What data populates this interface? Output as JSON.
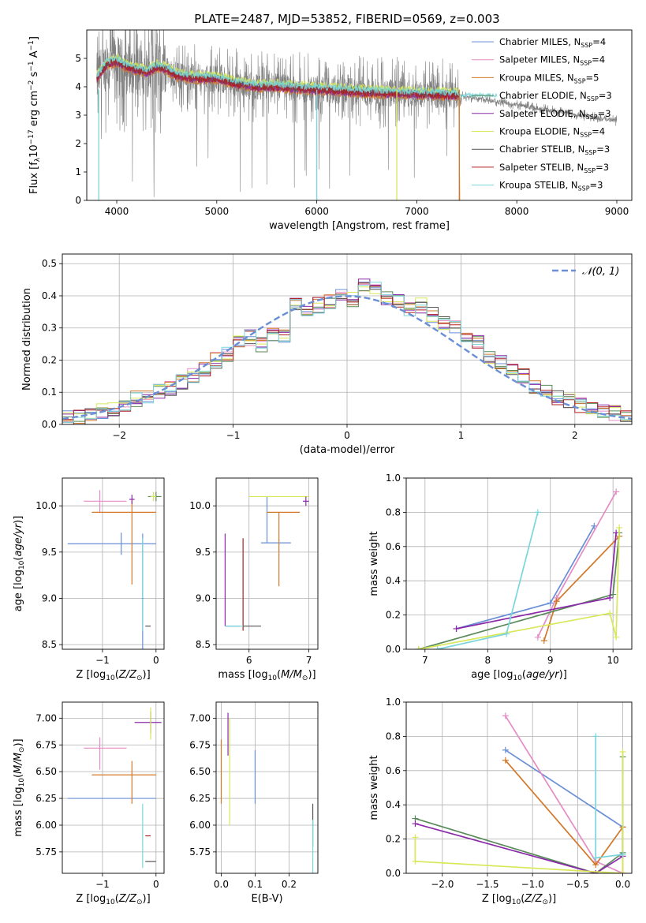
{
  "title": "PLATE=2487, MJD=53852, FIBERID=0569, z=0.003",
  "model_colors": [
    "#6a8fd6",
    "#e48cc4",
    "#d2782a",
    "#5a8a5a",
    "#8a2aa8",
    "#d8e85a",
    "#555555",
    "#b02020",
    "#7ad6dc"
  ],
  "legend": {
    "entries": [
      {
        "name": "Chabrier MILES",
        "nssp": "4"
      },
      {
        "name": "Salpeter MILES",
        "nssp": "4"
      },
      {
        "name": "Kroupa MILES",
        "nssp": "5"
      },
      {
        "name": "Chabrier ELODIE",
        "nssp": "3"
      },
      {
        "name": "Salpeter ELODIE",
        "nssp": "3"
      },
      {
        "name": "Kroupa ELODIE",
        "nssp": "4"
      },
      {
        "name": "Chabrier STELIB",
        "nssp": "3"
      },
      {
        "name": "Salpeter STELIB",
        "nssp": "3"
      },
      {
        "name": "Kroupa STELIB",
        "nssp": "3"
      }
    ]
  },
  "chart_data": [
    {
      "id": "spectrum",
      "type": "line",
      "xlabel": "wavelength [Angstrom, rest frame]",
      "ylabel": "Flux [f_λ 10^-17 erg cm^-2 s^-1 A^-1]",
      "xlim": [
        3700,
        9150
      ],
      "ylim": [
        0,
        6
      ],
      "xticks": [
        4000,
        5000,
        6000,
        7000,
        8000,
        9000
      ],
      "yticks": [
        0,
        1,
        2,
        3,
        4,
        5
      ],
      "data_range": [
        3800,
        9000
      ],
      "model_fits": [
        {
          "x": [
            3800,
            3900,
            4000,
            4100,
            4200,
            4300,
            4400,
            4500,
            4600,
            4800,
            5000,
            5200,
            5400,
            5600,
            5800,
            6000,
            6500,
            7000,
            7400
          ],
          "y": [
            4.3,
            4.8,
            4.9,
            4.7,
            4.6,
            4.5,
            4.7,
            4.6,
            4.4,
            4.3,
            4.3,
            4.1,
            4.0,
            4.0,
            3.95,
            3.9,
            3.8,
            3.75,
            3.7
          ]
        }
      ]
    },
    {
      "id": "residuals",
      "type": "step",
      "xlabel": "(data-model)/error",
      "ylabel": "Normed distribution",
      "xlim": [
        -2.5,
        2.5
      ],
      "ylim": [
        0,
        0.53
      ],
      "xticks": [
        -2,
        -1,
        0,
        1,
        2
      ],
      "yticks": [
        0.0,
        0.1,
        0.2,
        0.3,
        0.4,
        0.5
      ],
      "gaussian_label": "𝒩(0, 1)",
      "bin_edges": [
        -2.5,
        -2.4,
        -2.3,
        -2.2,
        -2.1,
        -2.0,
        -1.9,
        -1.8,
        -1.7,
        -1.6,
        -1.5,
        -1.4,
        -1.3,
        -1.2,
        -1.1,
        -1.0,
        -0.9,
        -0.8,
        -0.7,
        -0.6,
        -0.5,
        -0.4,
        -0.3,
        -0.2,
        -0.1,
        0.0,
        0.1,
        0.2,
        0.3,
        0.4,
        0.5,
        0.6,
        0.7,
        0.8,
        0.9,
        1.0,
        1.1,
        1.2,
        1.3,
        1.4,
        1.5,
        1.6,
        1.7,
        1.8,
        1.9,
        2.0,
        2.1,
        2.2,
        2.3,
        2.4,
        2.5
      ],
      "heights": [
        0.02,
        0.02,
        0.03,
        0.04,
        0.05,
        0.06,
        0.08,
        0.09,
        0.1,
        0.11,
        0.13,
        0.15,
        0.17,
        0.2,
        0.22,
        0.26,
        0.27,
        0.25,
        0.28,
        0.27,
        0.38,
        0.36,
        0.37,
        0.38,
        0.4,
        0.39,
        0.44,
        0.42,
        0.39,
        0.38,
        0.36,
        0.37,
        0.34,
        0.32,
        0.3,
        0.27,
        0.26,
        0.21,
        0.19,
        0.17,
        0.15,
        0.12,
        0.1,
        0.08,
        0.07,
        0.06,
        0.05,
        0.04,
        0.035,
        0.03
      ]
    },
    {
      "id": "age_vs_Z",
      "type": "errorbar",
      "xlabel": "Z [log10(Z/Z⊙)]",
      "ylabel": "age  [log10(age/yr)]",
      "xlim": [
        -1.75,
        0.15
      ],
      "ylim": [
        8.45,
        10.3
      ],
      "xticks": [
        -1,
        0
      ],
      "yticks": [
        8.5,
        9.0,
        9.5,
        10.0
      ],
      "points": [
        {
          "c": 0,
          "x": -0.65,
          "y": 9.59,
          "xe": [
            1.0,
            0.65
          ],
          "ye": [
            0.12,
            0.12
          ]
        },
        {
          "c": 0,
          "x": -0.25,
          "y": 9.0,
          "xe": [
            0.02,
            0.02
          ],
          "ye": [
            0.7,
            0.7
          ]
        },
        {
          "c": 1,
          "x": -1.05,
          "y": 10.05,
          "xe": [
            0.3,
            0.5
          ],
          "ye": [
            0.12,
            0.12
          ]
        },
        {
          "c": 2,
          "x": -0.6,
          "y": 9.93,
          "xe": [
            0.6,
            0.6
          ],
          "ye": [
            0.0,
            0.0
          ]
        },
        {
          "c": 2,
          "x": -0.45,
          "y": 9.6,
          "xe": [
            0.0,
            0.0
          ],
          "ye": [
            0.45,
            0.45
          ]
        },
        {
          "c": 3,
          "x": 0.0,
          "y": 10.1,
          "xe": [
            0.15,
            0.1
          ],
          "ye": [
            0.05,
            0.05
          ]
        },
        {
          "c": 4,
          "x": -0.45,
          "y": 10.07,
          "xe": [
            0.05,
            0.05
          ],
          "ye": [
            0.05,
            0.05
          ]
        },
        {
          "c": 5,
          "x": -0.05,
          "y": 10.1,
          "xe": [
            0.05,
            0.05
          ],
          "ye": [
            0.05,
            0.05
          ]
        },
        {
          "c": 6,
          "x": -0.15,
          "y": 8.7,
          "xe": [
            0.05,
            0.05
          ],
          "ye": [
            0.0,
            0.0
          ]
        },
        {
          "c": 8,
          "x": -0.25,
          "y": 9.15,
          "xe": [
            0.0,
            0.0
          ],
          "ye": [
            0.5,
            0.5
          ]
        }
      ]
    },
    {
      "id": "age_vs_mass",
      "type": "errorbar",
      "xlabel": "mass [log10(M/M⊙)]",
      "ylabel": "",
      "xlim": [
        5.45,
        7.15
      ],
      "ylim": [
        8.45,
        10.3
      ],
      "xticks": [
        6,
        7
      ],
      "yticks": [
        8.5,
        9.0,
        9.5,
        10.0
      ],
      "points": [
        {
          "c": 0,
          "x": 6.3,
          "y": 9.6,
          "xe": [
            0.1,
            0.4
          ],
          "ye": [
            0.0,
            0.5
          ]
        },
        {
          "c": 0,
          "x": 5.65,
          "y": 8.7,
          "xe": [
            0.05,
            0.2
          ],
          "ye": [
            0.0,
            0.0
          ]
        },
        {
          "c": 2,
          "x": 6.5,
          "y": 9.93,
          "xe": [
            0.2,
            0.35
          ],
          "ye": [
            0.8,
            0.0
          ]
        },
        {
          "c": 4,
          "x": 5.6,
          "y": 9.2,
          "xe": [
            0.0,
            0.0
          ],
          "ye": [
            0.5,
            0.5
          ]
        },
        {
          "c": 5,
          "x": 6.7,
          "y": 10.1,
          "xe": [
            0.7,
            0.3
          ],
          "ye": [
            0.0,
            0.0
          ]
        },
        {
          "c": 7,
          "x": 5.9,
          "y": 9.15,
          "xe": [
            0.0,
            0.0
          ],
          "ye": [
            0.5,
            0.5
          ]
        },
        {
          "c": 6,
          "x": 6.1,
          "y": 8.7,
          "xe": [
            0.2,
            0.1
          ],
          "ye": [
            0.0,
            0.0
          ]
        },
        {
          "c": 8,
          "x": 5.7,
          "y": 8.7,
          "xe": [
            0.1,
            0.2
          ],
          "ye": [
            0.0,
            0.0
          ]
        },
        {
          "c": 4,
          "x": 6.95,
          "y": 10.05,
          "xe": [
            0.05,
            0.05
          ],
          "ye": [
            0.05,
            0.05
          ]
        }
      ]
    },
    {
      "id": "weight_vs_age",
      "type": "line",
      "xlabel": "age  [log10(age/yr)]",
      "ylabel": "mass weight",
      "xlim": [
        6.7,
        10.3
      ],
      "ylim": [
        0,
        1
      ],
      "xticks": [
        7,
        8,
        9,
        10
      ],
      "yticks": [
        0.0,
        0.2,
        0.4,
        0.6,
        0.8,
        1.0
      ],
      "series": [
        {
          "c": 0,
          "x": [
            7.5,
            9.0,
            9.7
          ],
          "y": [
            0.12,
            0.27,
            0.72
          ]
        },
        {
          "c": 1,
          "x": [
            8.8,
            9.1,
            10.05
          ],
          "y": [
            0.07,
            0.3,
            0.92
          ]
        },
        {
          "c": 2,
          "x": [
            8.9,
            9.1,
            10.1
          ],
          "y": [
            0.05,
            0.28,
            0.66
          ]
        },
        {
          "c": 3,
          "x": [
            6.9,
            10.0,
            10.1
          ],
          "y": [
            0.0,
            0.32,
            0.68
          ]
        },
        {
          "c": 4,
          "x": [
            7.5,
            9.95,
            10.05
          ],
          "y": [
            0.12,
            0.3,
            0.68
          ]
        },
        {
          "c": 5,
          "x": [
            6.9,
            9.95,
            10.05,
            10.1
          ],
          "y": [
            0.0,
            0.21,
            0.07,
            0.71
          ]
        },
        {
          "c": 8,
          "x": [
            7.2,
            8.3,
            8.8
          ],
          "y": [
            0.0,
            0.09,
            0.8
          ]
        }
      ]
    },
    {
      "id": "mass_vs_Z",
      "type": "errorbar",
      "xlabel": "Z [log10(Z/Z⊙)]",
      "ylabel": "mass [log10(M/M⊙)]",
      "xlim": [
        -1.75,
        0.15
      ],
      "ylim": [
        5.55,
        7.15
      ],
      "xticks": [
        -1,
        0
      ],
      "yticks": [
        5.75,
        6.0,
        6.25,
        6.5,
        6.75,
        7.0
      ],
      "points": [
        {
          "c": 0,
          "x": -0.65,
          "y": 6.25,
          "xe": [
            1.0,
            0.65
          ],
          "ye": [
            0.0,
            0.0
          ]
        },
        {
          "c": 1,
          "x": -1.05,
          "y": 6.72,
          "xe": [
            0.3,
            0.5
          ],
          "ye": [
            0.2,
            0.1
          ]
        },
        {
          "c": 2,
          "x": -0.6,
          "y": 6.47,
          "xe": [
            0.6,
            0.6
          ],
          "ye": [
            0.0,
            0.0
          ]
        },
        {
          "c": 2,
          "x": -0.45,
          "y": 6.4,
          "xe": [
            0.0,
            0.0
          ],
          "ye": [
            0.2,
            0.2
          ]
        },
        {
          "c": 4,
          "x": -0.1,
          "y": 6.96,
          "xe": [
            0.3,
            0.2
          ],
          "ye": [
            0.1,
            0.1
          ]
        },
        {
          "c": 5,
          "x": -0.1,
          "y": 6.9,
          "xe": [
            0.0,
            0.0
          ],
          "ye": [
            0.1,
            0.2
          ]
        },
        {
          "c": 7,
          "x": -0.1,
          "y": 5.9,
          "xe": [
            0.1,
            0.0
          ],
          "ye": [
            0.0,
            0.0
          ]
        },
        {
          "c": 6,
          "x": -0.1,
          "y": 5.66,
          "xe": [
            0.1,
            0.1
          ],
          "ye": [
            0.0,
            0.0
          ]
        },
        {
          "c": 8,
          "x": -0.25,
          "y": 5.9,
          "xe": [
            0.0,
            0.0
          ],
          "ye": [
            0.3,
            0.3
          ]
        }
      ]
    },
    {
      "id": "mass_vs_EBV",
      "type": "errorbar",
      "xlabel": "E(B-V)",
      "ylabel": "",
      "xlim": [
        -0.015,
        0.285
      ],
      "ylim": [
        5.55,
        7.15
      ],
      "xticks": [
        0.0,
        0.1,
        0.2
      ],
      "yticks": [
        5.75,
        6.0,
        6.25,
        6.5,
        6.75,
        7.0
      ],
      "points": [
        {
          "c": 0,
          "x": 0.1,
          "y": 6.45,
          "xe": [
            0.0,
            0.0
          ],
          "ye": [
            0.25,
            0.25
          ]
        },
        {
          "c": 2,
          "x": 0.0,
          "y": 6.5,
          "xe": [
            0.0,
            0.0
          ],
          "ye": [
            0.3,
            0.3
          ]
        },
        {
          "c": 4,
          "x": 0.02,
          "y": 6.85,
          "xe": [
            0.0,
            0.0
          ],
          "ye": [
            0.2,
            0.2
          ]
        },
        {
          "c": 5,
          "x": 0.025,
          "y": 6.4,
          "xe": [
            0.0,
            0.0
          ],
          "ye": [
            0.4,
            0.6
          ]
        },
        {
          "c": 6,
          "x": 0.27,
          "y": 6.0,
          "xe": [
            0.0,
            0.0
          ],
          "ye": [
            0.2,
            0.2
          ]
        },
        {
          "c": 8,
          "x": 0.27,
          "y": 5.8,
          "xe": [
            0.0,
            0.0
          ],
          "ye": [
            0.25,
            0.25
          ]
        }
      ]
    },
    {
      "id": "weight_vs_Z",
      "type": "line",
      "xlabel": "Z [log10(Z/Z⊙)]",
      "ylabel": "mass weight",
      "xlim": [
        -2.4,
        0.1
      ],
      "ylim": [
        0,
        1
      ],
      "xticks": [
        -2.0,
        -1.5,
        -1.0,
        -0.5,
        0.0
      ],
      "yticks": [
        0.0,
        0.2,
        0.4,
        0.6,
        0.8,
        1.0
      ],
      "series": [
        {
          "c": 0,
          "x": [
            -1.3,
            0.0,
            0.0
          ],
          "y": [
            0.72,
            0.27,
            0.12
          ]
        },
        {
          "c": 1,
          "x": [
            -1.3,
            -0.3,
            0.0
          ],
          "y": [
            0.92,
            0.07,
            0.0
          ]
        },
        {
          "c": 2,
          "x": [
            -1.3,
            -0.3,
            0.0,
            0.0
          ],
          "y": [
            0.66,
            0.05,
            0.27,
            0.0
          ]
        },
        {
          "c": 3,
          "x": [
            -2.3,
            -0.3,
            0.0,
            0.0
          ],
          "y": [
            0.32,
            0.0,
            0.12,
            0.68
          ]
        },
        {
          "c": 4,
          "x": [
            -2.3,
            -0.3,
            0.0
          ],
          "y": [
            0.29,
            0.0,
            0.1
          ]
        },
        {
          "c": 5,
          "x": [
            -2.3,
            -2.3,
            0.0,
            0.0
          ],
          "y": [
            0.21,
            0.07,
            0.0,
            0.71
          ]
        },
        {
          "c": 8,
          "x": [
            -0.3,
            -0.3,
            0.0
          ],
          "y": [
            0.8,
            0.09,
            0.11
          ]
        }
      ]
    }
  ]
}
